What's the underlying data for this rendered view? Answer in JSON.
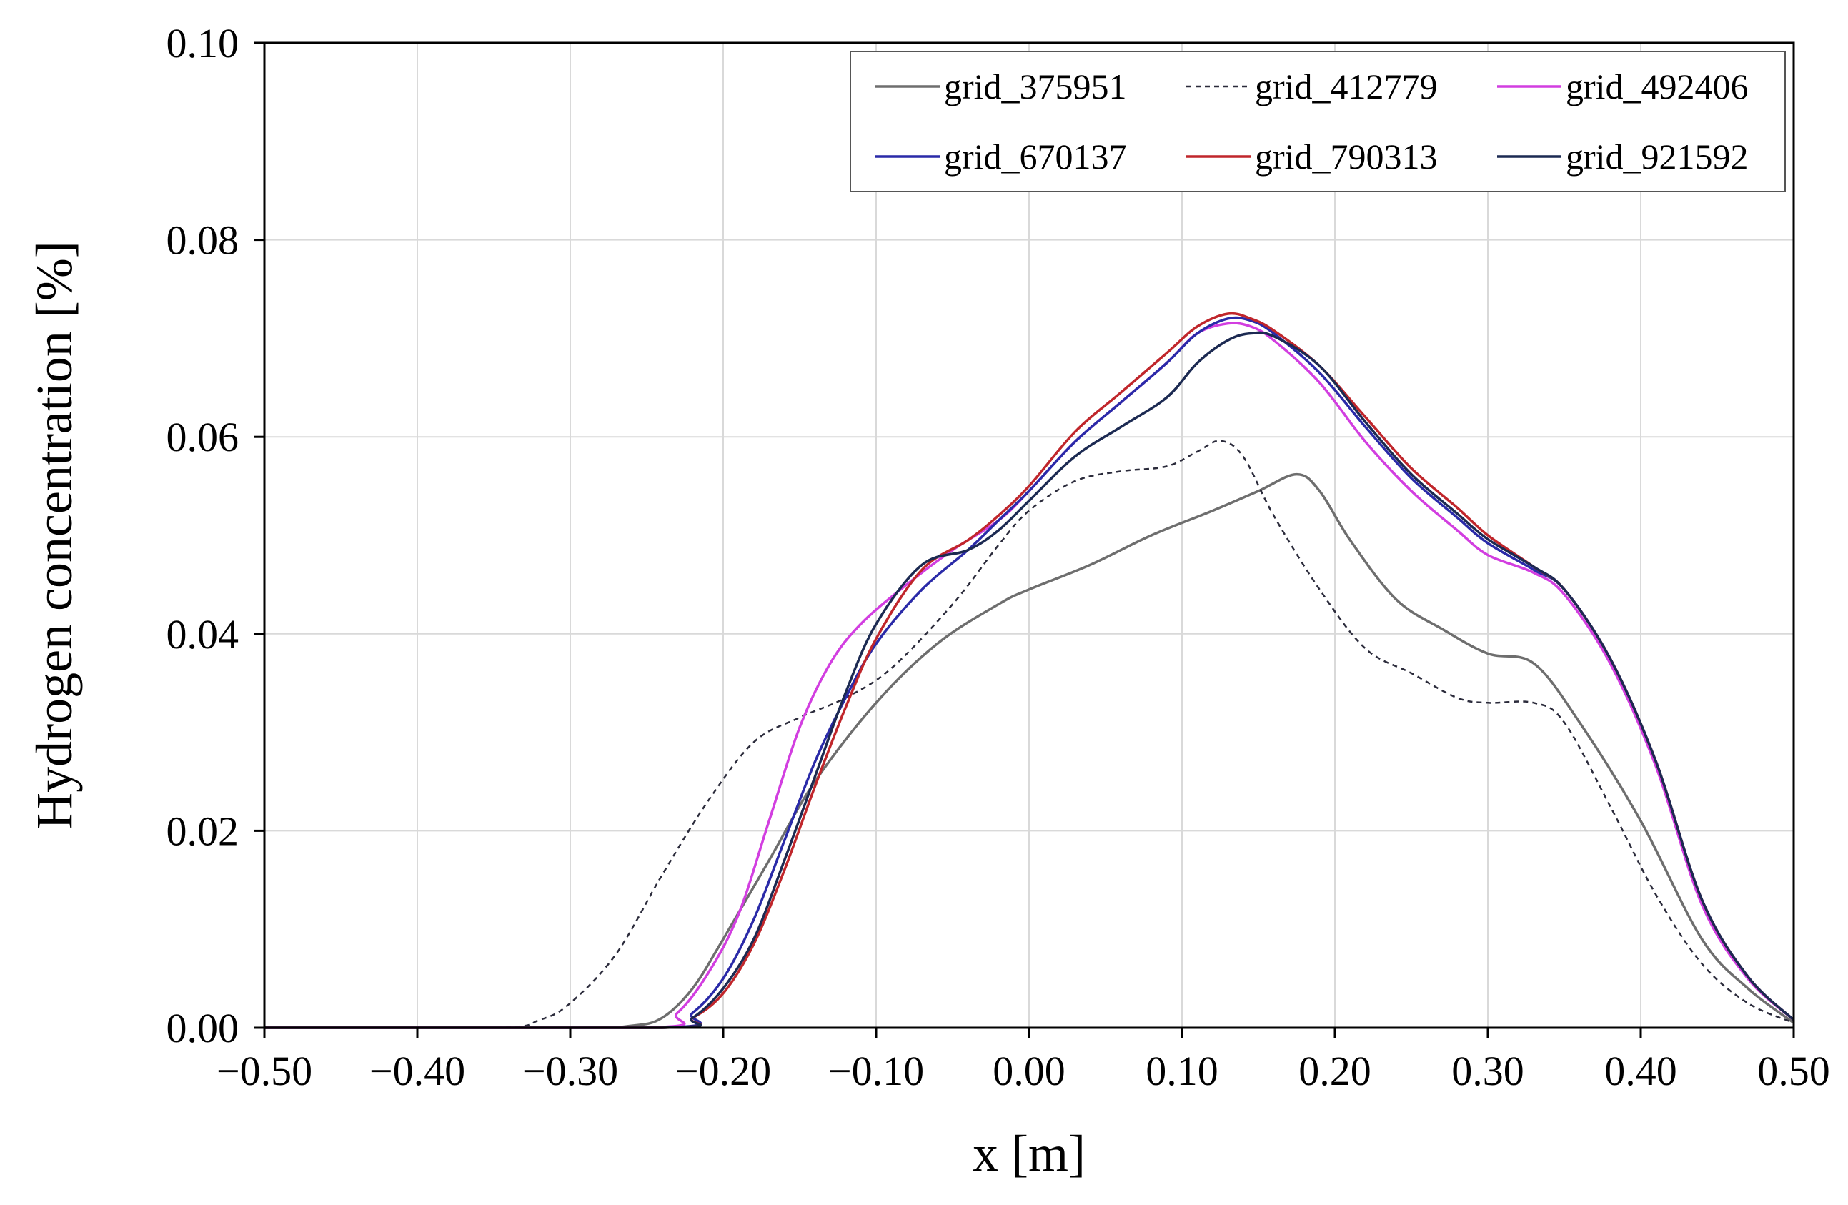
{
  "chart_data": {
    "type": "line",
    "title": "",
    "xlabel": "x [m]",
    "ylabel": "Hydrogen concentration [%]",
    "xlim": [
      -0.5,
      0.5
    ],
    "ylim": [
      0,
      0.1
    ],
    "xticks": [
      -0.5,
      -0.4,
      -0.3,
      -0.2,
      -0.1,
      0.0,
      0.1,
      0.2,
      0.3,
      0.4,
      0.5
    ],
    "xtick_labels": [
      "−0.50",
      "−0.40",
      "−0.30",
      "−0.20",
      "−0.10",
      "0.00",
      "0.10",
      "0.20",
      "0.30",
      "0.40",
      "0.50"
    ],
    "yticks": [
      0,
      0.02,
      0.04,
      0.06,
      0.08,
      0.1
    ],
    "ytick_labels": [
      "0.00",
      "0.02",
      "0.04",
      "0.06",
      "0.08",
      "0.10"
    ],
    "grid": true,
    "legend_position": "top-right",
    "series": [
      {
        "name": "grid_375951",
        "color": "#6e6e6e",
        "dashed": false,
        "x": [
          -0.5,
          -0.3,
          -0.26,
          -0.24,
          -0.22,
          -0.2,
          -0.17,
          -0.14,
          -0.1,
          -0.06,
          -0.02,
          0.0,
          0.04,
          0.08,
          0.12,
          0.15,
          0.175,
          0.19,
          0.21,
          0.24,
          0.27,
          0.3,
          0.33,
          0.36,
          0.4,
          0.44,
          0.47,
          0.5
        ],
        "y": [
          0,
          0,
          0.0002,
          0.001,
          0.004,
          0.009,
          0.017,
          0.025,
          0.033,
          0.039,
          0.043,
          0.0445,
          0.047,
          0.05,
          0.0525,
          0.0545,
          0.0562,
          0.0545,
          0.0495,
          0.0435,
          0.0405,
          0.038,
          0.037,
          0.031,
          0.021,
          0.009,
          0.004,
          0.0005
        ]
      },
      {
        "name": "grid_412779",
        "color": "#2b2b3b",
        "dashed": true,
        "x": [
          -0.5,
          -0.35,
          -0.32,
          -0.3,
          -0.27,
          -0.24,
          -0.21,
          -0.18,
          -0.15,
          -0.12,
          -0.09,
          -0.05,
          -0.02,
          0.0,
          0.03,
          0.06,
          0.09,
          0.11,
          0.125,
          0.14,
          0.16,
          0.19,
          0.22,
          0.25,
          0.28,
          0.3,
          0.33,
          0.35,
          0.38,
          0.41,
          0.44,
          0.47,
          0.5
        ],
        "y": [
          0,
          0,
          0.0008,
          0.0025,
          0.0075,
          0.0155,
          0.023,
          0.029,
          0.0315,
          0.0335,
          0.0365,
          0.043,
          0.049,
          0.0525,
          0.0555,
          0.0565,
          0.057,
          0.0585,
          0.0596,
          0.058,
          0.052,
          0.0445,
          0.0385,
          0.036,
          0.0335,
          0.033,
          0.033,
          0.031,
          0.0225,
          0.0135,
          0.0065,
          0.0025,
          0.0005
        ]
      },
      {
        "name": "grid_492406",
        "color": "#d23ee0",
        "dashed": false,
        "x": [
          -0.5,
          -0.25,
          -0.23,
          -0.21,
          -0.19,
          -0.17,
          -0.15,
          -0.13,
          -0.11,
          -0.08,
          -0.05,
          -0.02,
          0.0,
          0.03,
          0.06,
          0.09,
          0.11,
          0.13,
          0.145,
          0.16,
          0.19,
          0.22,
          0.25,
          0.28,
          0.3,
          0.33,
          0.35,
          0.38,
          0.41,
          0.44,
          0.47,
          0.5
        ],
        "y": [
          0,
          0,
          0.0015,
          0.0055,
          0.0115,
          0.021,
          0.0305,
          0.037,
          0.041,
          0.045,
          0.0485,
          0.0515,
          0.0545,
          0.0595,
          0.0635,
          0.0675,
          0.0705,
          0.0715,
          0.0712,
          0.0698,
          0.0655,
          0.0595,
          0.0545,
          0.0505,
          0.048,
          0.0462,
          0.044,
          0.037,
          0.0265,
          0.0125,
          0.005,
          0.0008
        ]
      },
      {
        "name": "grid_670137",
        "color": "#2a2aa8",
        "dashed": false,
        "x": [
          -0.5,
          -0.24,
          -0.22,
          -0.2,
          -0.18,
          -0.16,
          -0.14,
          -0.12,
          -0.1,
          -0.07,
          -0.04,
          -0.02,
          0.0,
          0.03,
          0.06,
          0.09,
          0.11,
          0.13,
          0.145,
          0.16,
          0.19,
          0.22,
          0.25,
          0.28,
          0.3,
          0.33,
          0.35,
          0.38,
          0.41,
          0.44,
          0.47,
          0.5
        ],
        "y": [
          0,
          0,
          0.0015,
          0.005,
          0.011,
          0.019,
          0.027,
          0.0335,
          0.039,
          0.0445,
          0.0485,
          0.0515,
          0.0545,
          0.0595,
          0.0635,
          0.0675,
          0.0705,
          0.072,
          0.0718,
          0.0705,
          0.0665,
          0.061,
          0.0558,
          0.0518,
          0.0492,
          0.0465,
          0.0445,
          0.0375,
          0.027,
          0.013,
          0.0052,
          0.0008
        ]
      },
      {
        "name": "grid_790313",
        "color": "#c0262b",
        "dashed": false,
        "x": [
          -0.5,
          -0.24,
          -0.22,
          -0.2,
          -0.18,
          -0.16,
          -0.14,
          -0.12,
          -0.1,
          -0.07,
          -0.04,
          -0.02,
          0.0,
          0.03,
          0.06,
          0.09,
          0.11,
          0.13,
          0.145,
          0.16,
          0.19,
          0.22,
          0.25,
          0.28,
          0.3,
          0.33,
          0.35,
          0.38,
          0.41,
          0.44,
          0.47,
          0.5
        ],
        "y": [
          0,
          0,
          0.001,
          0.0035,
          0.0085,
          0.016,
          0.0245,
          0.0325,
          0.0395,
          0.0465,
          0.0495,
          0.052,
          0.055,
          0.0605,
          0.0645,
          0.0685,
          0.0712,
          0.0725,
          0.072,
          0.0708,
          0.0672,
          0.062,
          0.0568,
          0.0528,
          0.05,
          0.0468,
          0.0445,
          0.0375,
          0.027,
          0.013,
          0.0052,
          0.0008
        ]
      },
      {
        "name": "grid_921592",
        "color": "#1c2a52",
        "dashed": false,
        "x": [
          -0.5,
          -0.24,
          -0.22,
          -0.2,
          -0.18,
          -0.16,
          -0.14,
          -0.12,
          -0.1,
          -0.07,
          -0.04,
          -0.02,
          0.0,
          0.03,
          0.06,
          0.09,
          0.11,
          0.13,
          0.145,
          0.16,
          0.19,
          0.22,
          0.25,
          0.28,
          0.3,
          0.33,
          0.35,
          0.38,
          0.41,
          0.44,
          0.47,
          0.5
        ],
        "y": [
          0,
          0,
          0.001,
          0.004,
          0.009,
          0.017,
          0.0255,
          0.034,
          0.041,
          0.047,
          0.0485,
          0.0505,
          0.0535,
          0.058,
          0.061,
          0.064,
          0.0675,
          0.0698,
          0.0705,
          0.0702,
          0.0672,
          0.0615,
          0.0562,
          0.0522,
          0.0496,
          0.0468,
          0.0445,
          0.0375,
          0.027,
          0.013,
          0.0052,
          0.0008
        ]
      }
    ]
  }
}
